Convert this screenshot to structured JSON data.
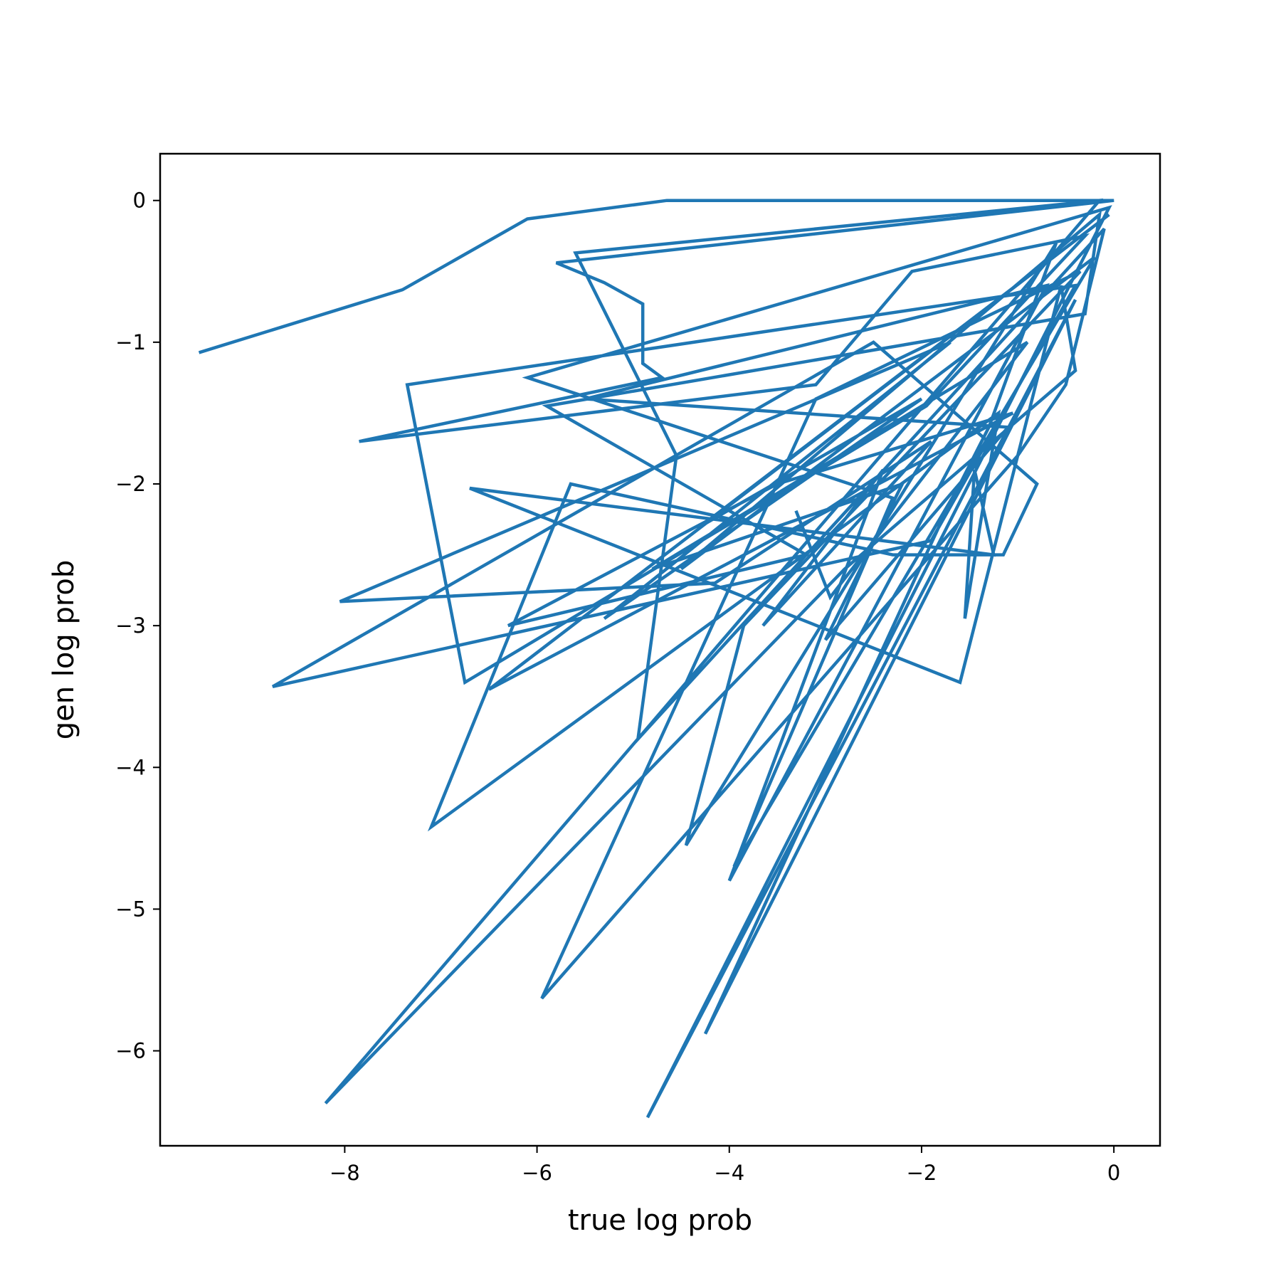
{
  "chart_data": {
    "type": "line",
    "title": "",
    "xlabel": "true log prob",
    "ylabel": "gen log prob",
    "xlim": [
      -9.92,
      0.48
    ],
    "ylim": [
      -6.67,
      0.33
    ],
    "xticks": [
      -8,
      -6,
      -4,
      -2,
      0
    ],
    "yticks": [
      0,
      -1,
      -2,
      -3,
      -4,
      -5,
      -6
    ],
    "xtick_labels": [
      "−8",
      "−6",
      "−4",
      "−2",
      "0"
    ],
    "ytick_labels": [
      "0",
      "−1",
      "−2",
      "−3",
      "−4",
      "−5",
      "−6"
    ],
    "grid": false,
    "legend": "none",
    "line_color": "#1f77b4",
    "series": [
      {
        "x": [
          -9.5,
          -7.4,
          -6.1,
          -4.65,
          0,
          -5.8,
          -5.3,
          -4.9,
          -4.9,
          -4.7,
          -7.85,
          -3.1,
          -2.1,
          -0.3,
          -1.95,
          -6.75,
          -7.35,
          -0.4,
          -1.9,
          -8.75,
          -2.5,
          -0.8,
          -1.15,
          -2.3,
          -5.65,
          -7.1,
          -1.2,
          -1.55,
          -1.45,
          -1.25,
          -6.7,
          -1.6,
          -0.55,
          -0.4,
          -2.8,
          -8.2,
          -0.15,
          -5.6,
          -4.55,
          -4.95,
          -0.1,
          -0.5,
          -1.0,
          -5.95,
          -3.1,
          -0.35,
          -3.85,
          -4.45,
          -0.6,
          -1.3,
          -1.75,
          -4.25,
          -0.4,
          -4.85,
          -0.05,
          -6.1,
          -2.3,
          -3.95,
          -0.2,
          -4.5,
          -0.15,
          -0.3,
          -5.9,
          -3.2,
          -6.3,
          -3.5,
          -1.05,
          -6.5,
          -0.05,
          -4.3,
          -2.0,
          -5.3,
          -1.7,
          -8.05,
          -4.15,
          -1.9,
          -3.65,
          -2.4,
          -4.0,
          -0.7,
          -5.5,
          -1.1,
          -3.0,
          -2.2,
          -4.8,
          -0.9,
          -2.95,
          -3.3
        ],
        "y": [
          -1.07,
          -0.63,
          -0.13,
          0.0,
          0.0,
          -0.44,
          -0.58,
          -0.73,
          -1.15,
          -1.25,
          -1.7,
          -1.3,
          -0.5,
          -0.25,
          -1.45,
          -3.4,
          -1.3,
          -0.6,
          -2.4,
          -3.43,
          -1.0,
          -2.0,
          -2.5,
          -2.5,
          -2.0,
          -4.42,
          -1.5,
          -2.95,
          -1.9,
          -2.5,
          -2.03,
          -3.4,
          -0.6,
          -1.2,
          -2.6,
          -6.37,
          0.0,
          -0.37,
          -1.8,
          -3.8,
          -0.2,
          -1.3,
          -1.8,
          -5.63,
          -1.4,
          -0.5,
          -3.0,
          -4.55,
          -0.3,
          -1.6,
          -2.2,
          -5.88,
          -0.7,
          -6.47,
          -0.05,
          -1.25,
          -2.1,
          -4.7,
          -0.4,
          -2.6,
          -0.1,
          -0.8,
          -1.45,
          -2.5,
          -3.0,
          -2.0,
          -1.5,
          -3.45,
          -0.1,
          -2.3,
          -1.4,
          -2.95,
          -1.0,
          -2.83,
          -2.7,
          -1.7,
          -3.0,
          -1.9,
          -4.8,
          -0.6,
          -1.4,
          -1.6,
          -3.1,
          -2.0,
          -2.6,
          -1.0,
          -2.8,
          -2.2
        ]
      }
    ]
  }
}
